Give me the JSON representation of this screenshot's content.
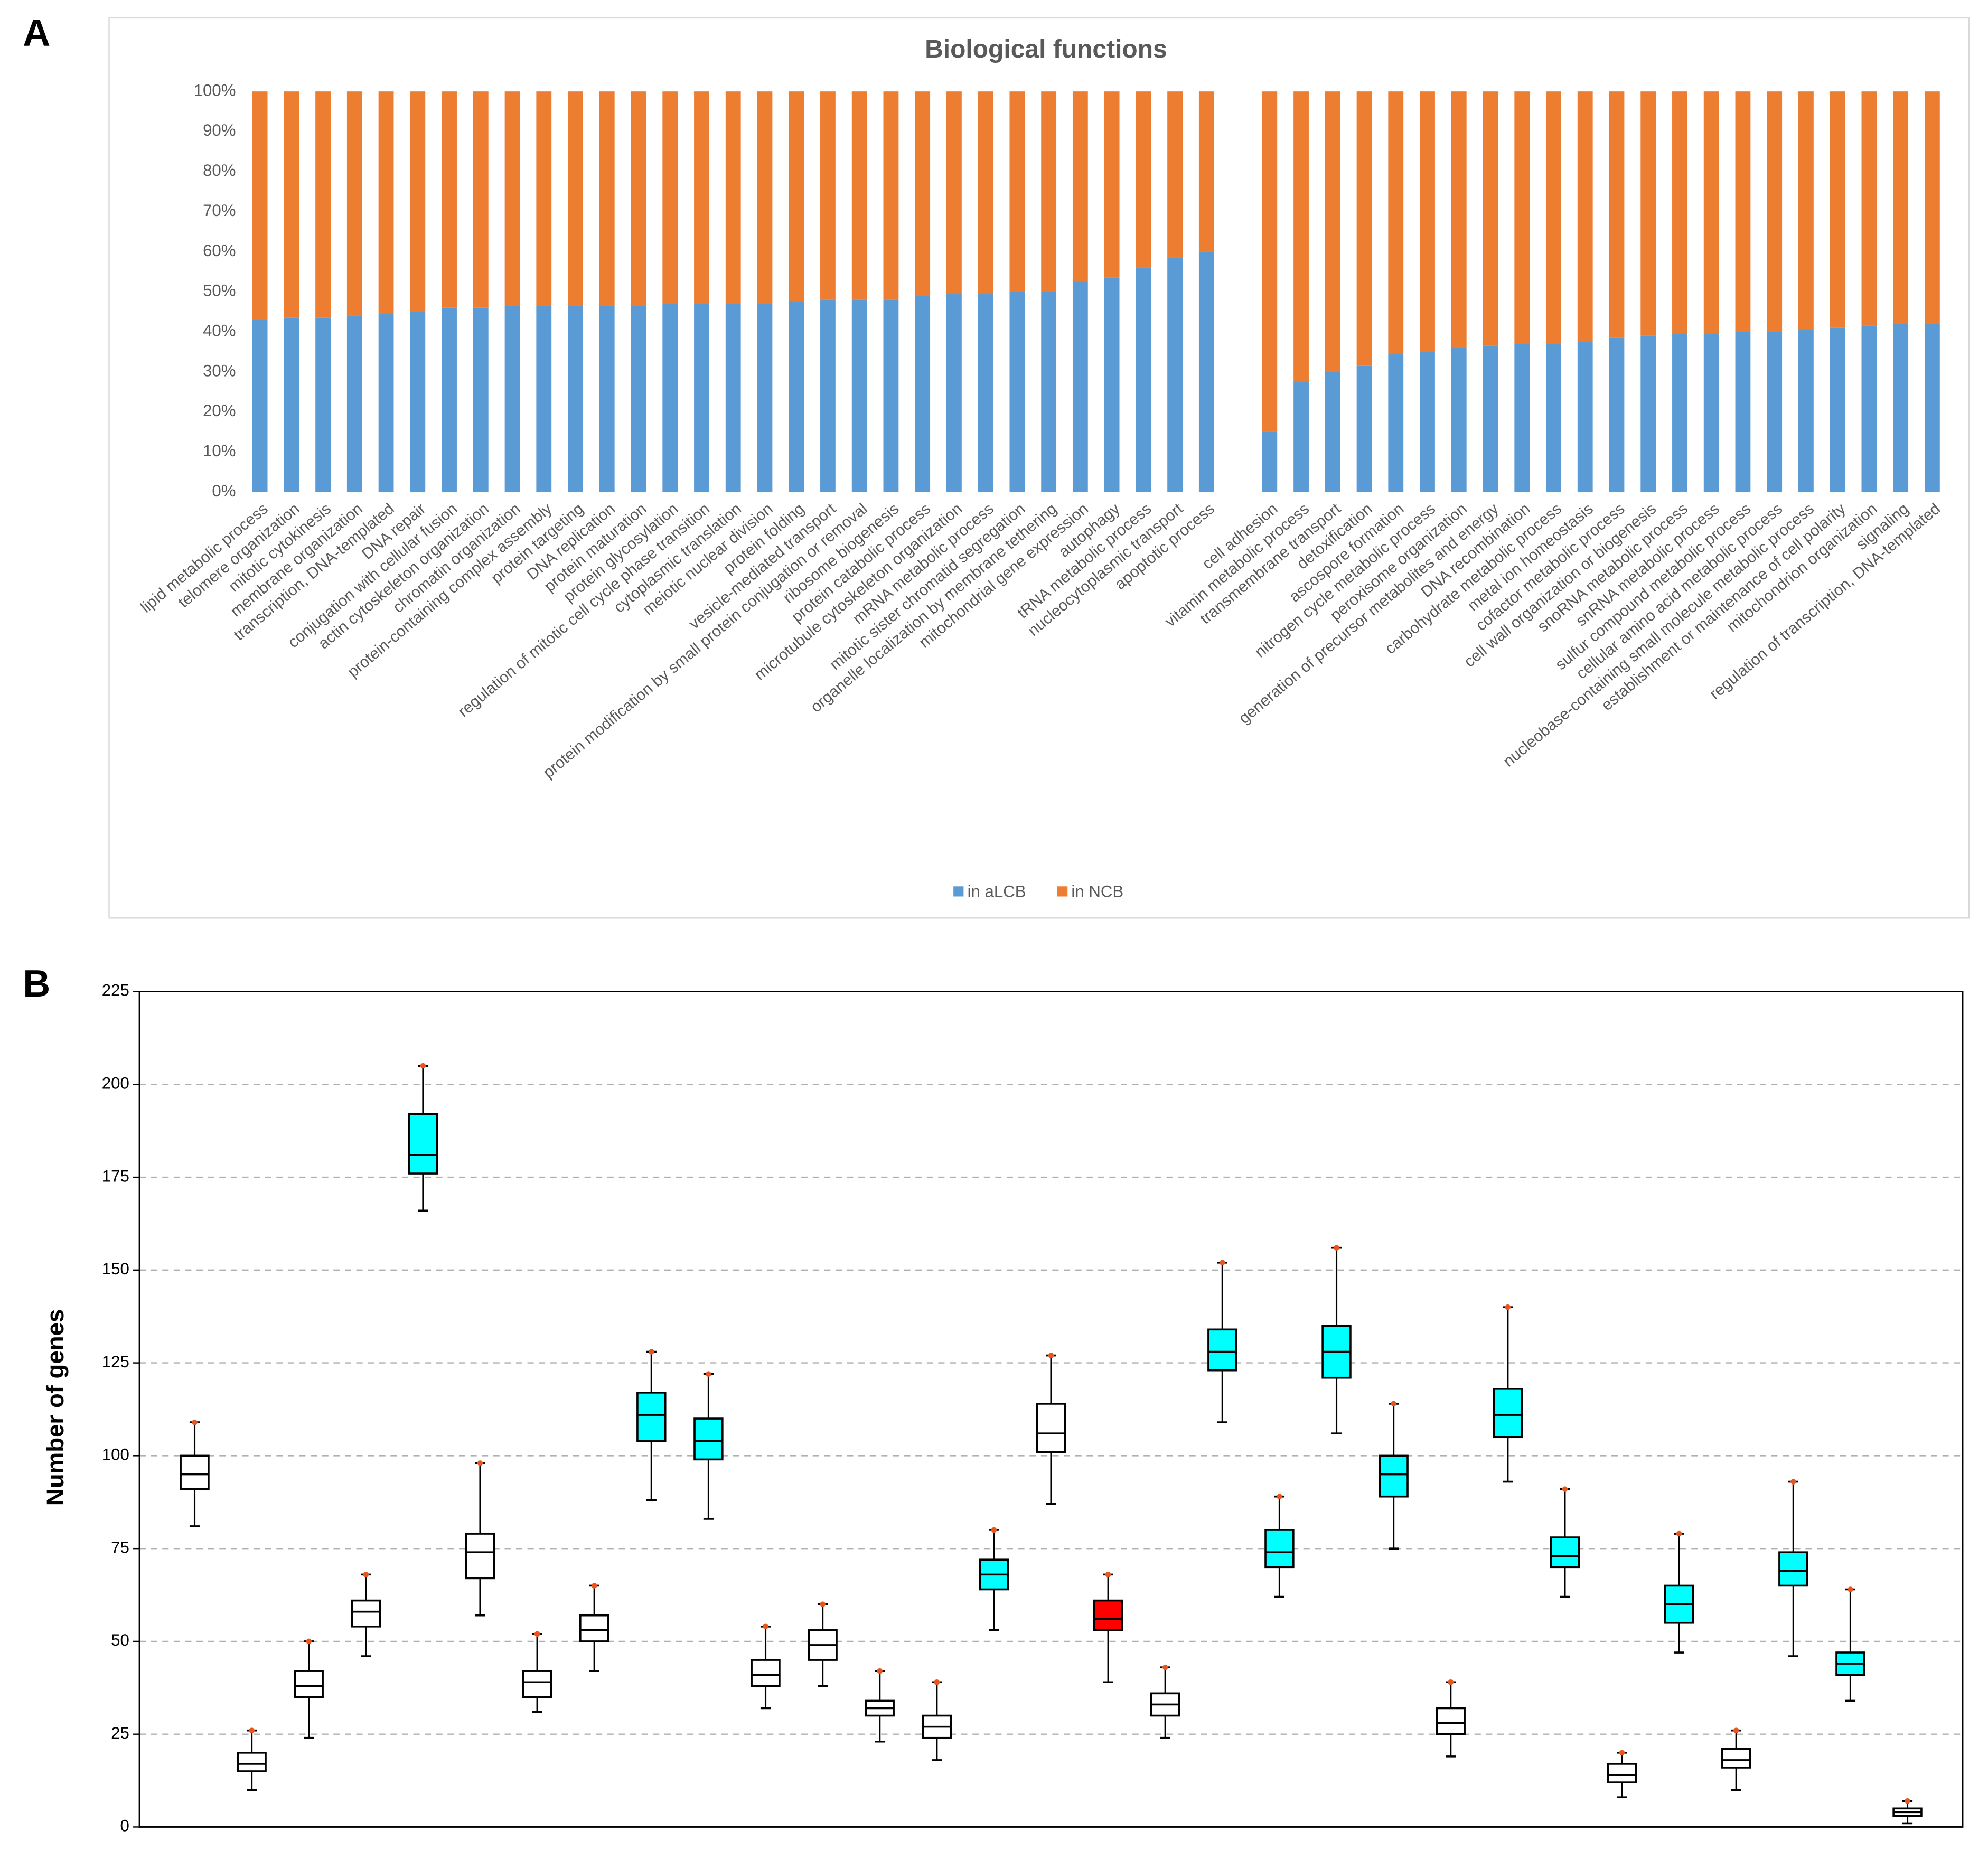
{
  "chart_data": [
    {
      "type": "stacked_bar",
      "panel": "A",
      "title": "Biological functions",
      "categories": [
        "lipid metabolic process",
        "telomere organization",
        "mitotic cytokinesis",
        "membrane organization",
        "transcription, DNA-templated",
        "DNA repair",
        "conjugation with cellular fusion",
        "actin cytoskeleton organization",
        "chromatin organization",
        "protein-containing complex assembly",
        "protein targeting",
        "DNA replication",
        "protein maturation",
        "protein glycosylation",
        "regulation of mitotic cell cycle phase transition",
        "cytoplasmic translation",
        "meiotic nuclear division",
        "protein folding",
        "vesicle-mediated transport",
        "protein modification by small protein conjugation or removal",
        "ribosome biogenesis",
        "protein catabolic process",
        "microtubule cytoskeleton organization",
        "mRNA metabolic process",
        "mitotic sister chromatid segregation",
        "organelle localization by membrane tethering",
        "mitochondrial gene expression",
        "autophagy",
        "tRNA metabolic process",
        "nucleocytoplasmic transport",
        "apoptotic process",
        null,
        "cell adhesion",
        "vitamin metabolic process",
        "transmembrane transport",
        "detoxification",
        "ascospore formation",
        "nitrogen cycle metabolic process",
        "peroxisome organization",
        "generation of precursor metabolites and energy",
        "DNA recombination",
        "carbohydrate metabolic process",
        "metal ion homeostasis",
        "cofactor metabolic process",
        "cell wall organization or biogenesis",
        "snoRNA metabolic process",
        "snRNA metabolic process",
        "sulfur compound metabolic process",
        "cellular amino acid metabolic process",
        "nucleobase-containing small molecule metabolic process",
        "establishment or maintenance of cell polarity",
        "mitochondrion organization",
        "signaling",
        "regulation of transcription, DNA-templated"
      ],
      "series": [
        {
          "name": "in aLCB",
          "color": "#5b9bd5",
          "values": [
            43,
            43.5,
            43.5,
            44,
            44.5,
            45,
            46,
            46,
            46.5,
            46.5,
            46.5,
            46.5,
            46.5,
            47,
            47,
            47,
            47,
            47.5,
            48,
            48,
            48,
            49,
            49.5,
            49.5,
            50,
            50,
            52.5,
            53.5,
            56,
            58.5,
            60,
            null,
            15,
            27.5,
            30,
            31.5,
            34.5,
            35,
            36,
            36.5,
            37,
            37,
            37.5,
            38.5,
            39,
            39.5,
            39.5,
            40,
            40,
            40.5,
            41,
            41.5,
            42,
            42
          ]
        },
        {
          "name": "in NCB",
          "color": "#ed7d31",
          "values": [
            57,
            56.5,
            56.5,
            56,
            55.5,
            55,
            54,
            54,
            53.5,
            53.5,
            53.5,
            53.5,
            53.5,
            53,
            53,
            53,
            53,
            52.5,
            52,
            52,
            52,
            51,
            50.5,
            50.5,
            50,
            50,
            47.5,
            46.5,
            44,
            41.5,
            40,
            null,
            85,
            72.5,
            70,
            68.5,
            65.5,
            65,
            64,
            63.5,
            63,
            63,
            62.5,
            61.5,
            61,
            60.5,
            60.5,
            60,
            60,
            59.5,
            59,
            58.5,
            58,
            58
          ]
        }
      ],
      "ylim": [
        0,
        100
      ],
      "yticks": [
        {
          "value": 0,
          "label": "0%"
        },
        {
          "value": 10,
          "label": "10%"
        },
        {
          "value": 20,
          "label": "20%"
        },
        {
          "value": 30,
          "label": "30%"
        },
        {
          "value": 40,
          "label": "40%"
        },
        {
          "value": 50,
          "label": "50%"
        },
        {
          "value": 60,
          "label": "60%"
        },
        {
          "value": 70,
          "label": "70%"
        },
        {
          "value": 80,
          "label": "80%"
        },
        {
          "value": 90,
          "label": "90%"
        },
        {
          "value": 100,
          "label": "100%"
        }
      ],
      "legend": "bottom"
    },
    {
      "type": "box",
      "panel": "B",
      "ylabel": "Number of genes",
      "ylim": [
        0,
        225
      ],
      "yticks": [
        0,
        25,
        50,
        75,
        100,
        125,
        150,
        175,
        200,
        225
      ],
      "grid": true,
      "boxes": [
        {
          "min": 81,
          "q1": 91,
          "median": 95,
          "q3": 100,
          "max": 109,
          "color": "#ffffff"
        },
        {
          "min": 10,
          "q1": 15,
          "median": 17,
          "q3": 20,
          "max": 26,
          "color": "#ffffff"
        },
        {
          "min": 24,
          "q1": 35,
          "median": 38,
          "q3": 42,
          "max": 50,
          "color": "#ffffff"
        },
        {
          "min": 46,
          "q1": 54,
          "median": 58,
          "q3": 61,
          "max": 68,
          "color": "#ffffff"
        },
        {
          "min": 166,
          "q1": 176,
          "median": 181,
          "q3": 192,
          "max": 205,
          "color": "#00ffff"
        },
        {
          "min": 57,
          "q1": 67,
          "median": 74,
          "q3": 79,
          "max": 98,
          "color": "#ffffff"
        },
        {
          "min": 31,
          "q1": 35,
          "median": 39,
          "q3": 42,
          "max": 52,
          "color": "#ffffff"
        },
        {
          "min": 42,
          "q1": 50,
          "median": 53,
          "q3": 57,
          "max": 65,
          "color": "#ffffff"
        },
        {
          "min": 88,
          "q1": 104,
          "median": 111,
          "q3": 117,
          "max": 128,
          "color": "#00ffff"
        },
        {
          "min": 83,
          "q1": 99,
          "median": 104,
          "q3": 110,
          "max": 122,
          "color": "#00ffff"
        },
        {
          "min": 32,
          "q1": 38,
          "median": 41,
          "q3": 45,
          "max": 54,
          "color": "#ffffff"
        },
        {
          "min": 38,
          "q1": 45,
          "median": 49,
          "q3": 53,
          "max": 60,
          "color": "#ffffff"
        },
        {
          "min": 23,
          "q1": 30,
          "median": 32,
          "q3": 34,
          "max": 42,
          "color": "#ffffff"
        },
        {
          "min": 18,
          "q1": 24,
          "median": 27,
          "q3": 30,
          "max": 39,
          "color": "#ffffff"
        },
        {
          "min": 53,
          "q1": 64,
          "median": 68,
          "q3": 72,
          "max": 80,
          "color": "#00ffff"
        },
        {
          "min": 87,
          "q1": 101,
          "median": 106,
          "q3": 114,
          "max": 127,
          "color": "#ffffff"
        },
        {
          "min": 39,
          "q1": 53,
          "median": 56,
          "q3": 61,
          "max": 68,
          "color": "#ff0000"
        },
        {
          "min": 24,
          "q1": 30,
          "median": 33,
          "q3": 36,
          "max": 43,
          "color": "#ffffff"
        },
        {
          "min": 109,
          "q1": 123,
          "median": 128,
          "q3": 134,
          "max": 152,
          "color": "#00ffff"
        },
        {
          "min": 62,
          "q1": 70,
          "median": 74,
          "q3": 80,
          "max": 89,
          "color": "#00ffff"
        },
        {
          "min": 106,
          "q1": 121,
          "median": 128,
          "q3": 135,
          "max": 156,
          "color": "#00ffff"
        },
        {
          "min": 75,
          "q1": 89,
          "median": 95,
          "q3": 100,
          "max": 114,
          "color": "#00ffff"
        },
        {
          "min": 19,
          "q1": 25,
          "median": 28,
          "q3": 32,
          "max": 39,
          "color": "#ffffff"
        },
        {
          "min": 93,
          "q1": 105,
          "median": 111,
          "q3": 118,
          "max": 140,
          "color": "#00ffff"
        },
        {
          "min": 62,
          "q1": 70,
          "median": 73,
          "q3": 78,
          "max": 91,
          "color": "#00ffff"
        },
        {
          "min": 8,
          "q1": 12,
          "median": 14,
          "q3": 17,
          "max": 20,
          "color": "#ffffff"
        },
        {
          "min": 47,
          "q1": 55,
          "median": 60,
          "q3": 65,
          "max": 79,
          "color": "#00ffff"
        },
        {
          "min": 10,
          "q1": 16,
          "median": 18,
          "q3": 21,
          "max": 26,
          "color": "#ffffff"
        },
        {
          "min": 46,
          "q1": 65,
          "median": 69,
          "q3": 74,
          "max": 93,
          "color": "#00ffff"
        },
        {
          "min": 34,
          "q1": 41,
          "median": 44,
          "q3": 47,
          "max": 64,
          "color": "#00ffff"
        },
        {
          "min": 1,
          "q1": 3,
          "median": 4,
          "q3": 5,
          "max": 7,
          "color": "#ffffff"
        }
      ]
    }
  ]
}
